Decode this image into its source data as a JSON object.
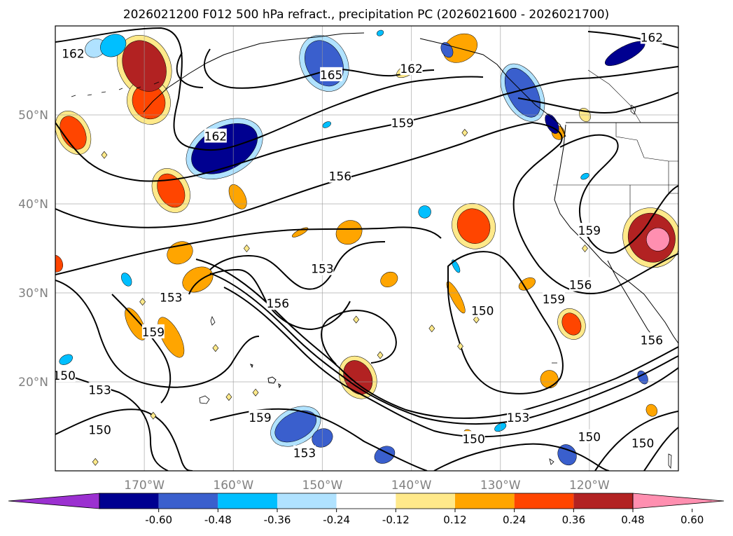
{
  "chart_data": {
    "type": "contour-map",
    "title": "2026021200 F012 500 hPa refract., precipitation PC (2026021600 - 2026021700)",
    "lon_range": [
      -180,
      -110
    ],
    "lat_range": [
      10,
      60
    ],
    "lon_ticks": [
      {
        "value": -170,
        "label": "170°W"
      },
      {
        "value": -160,
        "label": "160°W"
      },
      {
        "value": -150,
        "label": "150°W"
      },
      {
        "value": -140,
        "label": "140°W"
      },
      {
        "value": -130,
        "label": "130°W"
      },
      {
        "value": -120,
        "label": "120°W"
      }
    ],
    "lat_ticks": [
      {
        "value": 50,
        "label": "50°N"
      },
      {
        "value": 40,
        "label": "40°N"
      },
      {
        "value": 30,
        "label": "30°N"
      },
      {
        "value": 20,
        "label": "20°N"
      }
    ],
    "contour_levels": [
      150,
      153,
      156,
      159,
      162,
      165
    ],
    "contour_labels": [
      {
        "text": "162",
        "lon": -178,
        "lat": 56.9
      },
      {
        "text": "165",
        "lon": -149,
        "lat": 54.5
      },
      {
        "text": "162",
        "lon": -140,
        "lat": 55.2
      },
      {
        "text": "162",
        "lon": -113,
        "lat": 58.7
      },
      {
        "text": "159",
        "lon": -141,
        "lat": 49.1
      },
      {
        "text": "162",
        "lon": -162,
        "lat": 47.6
      },
      {
        "text": "156",
        "lon": -148,
        "lat": 43.1
      },
      {
        "text": "159",
        "lon": -120,
        "lat": 37.0
      },
      {
        "text": "153",
        "lon": -150,
        "lat": 32.7
      },
      {
        "text": "153",
        "lon": -167,
        "lat": 29.5
      },
      {
        "text": "156",
        "lon": -155,
        "lat": 28.8
      },
      {
        "text": "159",
        "lon": -169,
        "lat": 25.6
      },
      {
        "text": "150",
        "lon": -132,
        "lat": 28.0
      },
      {
        "text": "159",
        "lon": -124,
        "lat": 29.3
      },
      {
        "text": "156",
        "lon": -121,
        "lat": 30.9
      },
      {
        "text": "156",
        "lon": -113,
        "lat": 24.7
      },
      {
        "text": "150",
        "lon": -179,
        "lat": 20.7
      },
      {
        "text": "153",
        "lon": -175,
        "lat": 19.1
      },
      {
        "text": "150",
        "lon": -175,
        "lat": 14.6
      },
      {
        "text": "159",
        "lon": -157,
        "lat": 16.0
      },
      {
        "text": "153",
        "lon": -152,
        "lat": 12.0
      },
      {
        "text": "153",
        "lon": -128,
        "lat": 16.0
      },
      {
        "text": "150",
        "lon": -133,
        "lat": 13.6
      },
      {
        "text": "150",
        "lon": -120,
        "lat": 13.8
      },
      {
        "text": "150",
        "lon": -114,
        "lat": 13.1
      }
    ],
    "colorbar": {
      "ticks": [
        "-0.60",
        "-0.48",
        "-0.36",
        "-0.24",
        "-0.12",
        "0.12",
        "0.24",
        "0.36",
        "0.48",
        "0.60"
      ],
      "colors": [
        "#9b30d0",
        "#000090",
        "#3a5fcd",
        "#00bfff",
        "#b0e2ff",
        "#ffffff",
        "#ffe98a",
        "#ffa500",
        "#ff4500",
        "#b22222",
        "#ff8fb0"
      ],
      "extend": "both"
    },
    "precip_blobs": [
      {
        "lon": -161.0,
        "lat": 46.2,
        "rlon": 4.0,
        "rlat": 2.4,
        "level": -0.48
      },
      {
        "lon": -149.8,
        "lat": 55.8,
        "rlon": 2.0,
        "rlat": 2.7,
        "level": -0.36
      },
      {
        "lon": -173.5,
        "lat": 57.8,
        "rlon": 1.5,
        "rlat": 1.2,
        "level": -0.24
      },
      {
        "lon": -136.0,
        "lat": 57.3,
        "rlon": 0.6,
        "rlat": 0.9,
        "level": -0.36
      },
      {
        "lon": -127.5,
        "lat": 52.5,
        "rlon": 1.6,
        "rlat": 3.0,
        "level": -0.36
      },
      {
        "lon": -124.2,
        "lat": 49.0,
        "rlon": 0.6,
        "rlat": 1.2,
        "level": -0.48
      },
      {
        "lon": -116.0,
        "lat": 56.9,
        "rlon": 2.5,
        "rlat": 0.8,
        "level": -0.48
      },
      {
        "lon": -143.5,
        "lat": 59.2,
        "rlon": 0.4,
        "rlat": 0.3,
        "level": -0.24
      },
      {
        "lon": -149.5,
        "lat": 48.9,
        "rlon": 0.5,
        "rlat": 0.3,
        "level": -0.24
      },
      {
        "lon": -120.5,
        "lat": 43.1,
        "rlon": 0.5,
        "rlat": 0.3,
        "level": -0.24
      },
      {
        "lon": -138.5,
        "lat": 39.1,
        "rlon": 0.7,
        "rlat": 0.7,
        "level": -0.24
      },
      {
        "lon": -153.0,
        "lat": 15.0,
        "rlon": 2.5,
        "rlat": 1.5,
        "level": -0.36
      },
      {
        "lon": -150.0,
        "lat": 13.7,
        "rlon": 1.2,
        "rlat": 1.0,
        "level": -0.36
      },
      {
        "lon": -143.0,
        "lat": 11.8,
        "rlon": 1.2,
        "rlat": 0.9,
        "level": -0.36
      },
      {
        "lon": -122.5,
        "lat": 11.8,
        "rlon": 1.0,
        "rlat": 1.2,
        "level": -0.36
      },
      {
        "lon": -114.0,
        "lat": 20.5,
        "rlon": 0.5,
        "rlat": 0.8,
        "level": -0.36
      },
      {
        "lon": -178.8,
        "lat": 22.5,
        "rlon": 0.8,
        "rlat": 0.5,
        "level": -0.24
      },
      {
        "lon": -178.8,
        "lat": 20.7,
        "rlon": 0.5,
        "rlat": 0.4,
        "level": -0.24
      },
      {
        "lon": -172.0,
        "lat": 31.5,
        "rlon": 0.5,
        "rlat": 0.8,
        "level": -0.24
      },
      {
        "lon": -130.0,
        "lat": 14.9,
        "rlon": 0.7,
        "rlat": 0.4,
        "level": -0.24
      },
      {
        "lon": -135.0,
        "lat": 33.0,
        "rlon": 0.3,
        "rlat": 0.8,
        "level": -0.24
      },
      {
        "lon": -175.5,
        "lat": 57.5,
        "rlon": 1.2,
        "rlat": 1.0,
        "level": -0.12
      },
      {
        "lon": -149.8,
        "lat": 55.8,
        "rlon": 2.6,
        "rlat": 3.3,
        "level": -0.12
      },
      {
        "lon": -161.0,
        "lat": 46.2,
        "rlon": 4.6,
        "rlat": 3.0,
        "level": -0.12
      },
      {
        "lon": -127.5,
        "lat": 52.5,
        "rlon": 2.1,
        "rlat": 3.5,
        "level": -0.12
      },
      {
        "lon": -153.0,
        "lat": 15.0,
        "rlon": 3.0,
        "rlat": 2.0,
        "level": -0.12
      },
      {
        "lon": -170.0,
        "lat": 55.5,
        "rlon": 2.3,
        "rlat": 3.0,
        "level": 0.48
      },
      {
        "lon": -178.0,
        "lat": 48.0,
        "rlon": 1.3,
        "rlat": 2.0,
        "level": 0.36
      },
      {
        "lon": -169.5,
        "lat": 51.5,
        "rlon": 1.8,
        "rlat": 2.0,
        "level": 0.36
      },
      {
        "lon": -167.0,
        "lat": 41.5,
        "rlon": 1.4,
        "rlat": 2.0,
        "level": 0.36
      },
      {
        "lon": -133.0,
        "lat": 37.5,
        "rlon": 1.8,
        "rlat": 2.0,
        "level": 0.36
      },
      {
        "lon": -113.0,
        "lat": 36.2,
        "rlon": 2.6,
        "rlat": 2.8,
        "level": 0.48
      },
      {
        "lon": -112.3,
        "lat": 36.0,
        "rlon": 1.3,
        "rlat": 1.3,
        "level": 0.6
      },
      {
        "lon": -122.0,
        "lat": 26.5,
        "rlon": 1.0,
        "rlat": 1.3,
        "level": 0.36
      },
      {
        "lon": -146.0,
        "lat": 20.5,
        "rlon": 1.5,
        "rlat": 2.0,
        "level": 0.48
      },
      {
        "lon": -180.0,
        "lat": 33.3,
        "rlon": 0.8,
        "rlat": 1.0,
        "level": 0.36
      },
      {
        "lon": -133.5,
        "lat": 13.8,
        "rlon": 0.6,
        "rlat": 0.9,
        "level": 0.24
      },
      {
        "lon": -134.5,
        "lat": 57.5,
        "rlon": 2.0,
        "rlat": 1.5,
        "level": 0.24
      },
      {
        "lon": -171.0,
        "lat": 26.5,
        "rlon": 0.8,
        "rlat": 2.0,
        "level": 0.24
      },
      {
        "lon": -159.5,
        "lat": 40.8,
        "rlon": 0.8,
        "rlat": 1.5,
        "level": 0.24
      },
      {
        "lon": -164.0,
        "lat": 31.5,
        "rlon": 1.8,
        "rlat": 1.3,
        "level": 0.24
      },
      {
        "lon": -166.0,
        "lat": 34.5,
        "rlon": 1.5,
        "rlat": 1.2,
        "level": 0.24
      },
      {
        "lon": -167.0,
        "lat": 25.0,
        "rlon": 1.0,
        "rlat": 2.5,
        "level": 0.24
      },
      {
        "lon": -147.0,
        "lat": 36.8,
        "rlon": 1.5,
        "rlat": 1.3,
        "level": 0.24
      },
      {
        "lon": -142.5,
        "lat": 31.5,
        "rlon": 1.0,
        "rlat": 0.8,
        "level": 0.24
      },
      {
        "lon": -135.0,
        "lat": 29.5,
        "rlon": 0.5,
        "rlat": 2.0,
        "level": 0.24
      },
      {
        "lon": -127.0,
        "lat": 31.0,
        "rlon": 1.0,
        "rlat": 0.6,
        "level": 0.24
      },
      {
        "lon": -124.5,
        "lat": 20.3,
        "rlon": 1.0,
        "rlat": 1.0,
        "level": 0.24
      },
      {
        "lon": -127.0,
        "lat": 52.5,
        "rlon": 1.0,
        "rlat": 1.0,
        "level": 0.24
      },
      {
        "lon": -123.5,
        "lat": 48.0,
        "rlon": 0.7,
        "rlat": 0.8,
        "level": 0.24
      },
      {
        "lon": -152.5,
        "lat": 36.8,
        "rlon": 1.0,
        "rlat": 0.3,
        "level": 0.24
      },
      {
        "lon": -113.0,
        "lat": 16.8,
        "rlon": 0.6,
        "rlat": 0.7,
        "level": 0.24
      },
      {
        "lon": -170.0,
        "lat": 55.5,
        "rlon": 2.9,
        "rlat": 3.6,
        "level": 0.12
      },
      {
        "lon": -169.5,
        "lat": 51.5,
        "rlon": 2.4,
        "rlat": 2.6,
        "level": 0.12
      },
      {
        "lon": -178.0,
        "lat": 48.0,
        "rlon": 1.8,
        "rlat": 2.6,
        "level": 0.12
      },
      {
        "lon": -167.0,
        "lat": 41.5,
        "rlon": 2.0,
        "rlat": 2.6,
        "level": 0.12
      },
      {
        "lon": -133.0,
        "lat": 37.5,
        "rlon": 2.4,
        "rlat": 2.6,
        "level": 0.12
      },
      {
        "lon": -113.0,
        "lat": 36.2,
        "rlon": 3.2,
        "rlat": 3.4,
        "level": 0.12
      },
      {
        "lon": -146.0,
        "lat": 20.5,
        "rlon": 2.0,
        "rlat": 2.5,
        "level": 0.12
      },
      {
        "lon": -122.0,
        "lat": 26.5,
        "rlon": 1.5,
        "rlat": 1.8,
        "level": 0.12
      },
      {
        "lon": -140.5,
        "lat": 55.0,
        "rlon": 1.3,
        "rlat": 0.6,
        "level": 0.12
      },
      {
        "lon": -120.5,
        "lat": 50.0,
        "rlon": 0.6,
        "rlat": 0.8,
        "level": 0.12
      }
    ],
    "tiny_dots": [
      {
        "lon": -170.2,
        "lat": 29.0
      },
      {
        "lon": -146.2,
        "lat": 27.0
      },
      {
        "lon": -132.7,
        "lat": 27.0
      },
      {
        "lon": -137.7,
        "lat": 26.0
      },
      {
        "lon": -134.5,
        "lat": 24.0
      },
      {
        "lon": -162.0,
        "lat": 23.8
      },
      {
        "lon": -157.5,
        "lat": 18.8
      },
      {
        "lon": -160.5,
        "lat": 18.3
      },
      {
        "lon": -169.0,
        "lat": 16.2
      },
      {
        "lon": -175.5,
        "lat": 11.0
      },
      {
        "lon": -134.0,
        "lat": 48.0
      },
      {
        "lon": -120.5,
        "lat": 35.0
      },
      {
        "lon": -158.5,
        "lat": 35.0
      },
      {
        "lon": -174.5,
        "lat": 45.5
      },
      {
        "lon": -143.5,
        "lat": 23.0
      }
    ],
    "colorbar_label": ""
  }
}
